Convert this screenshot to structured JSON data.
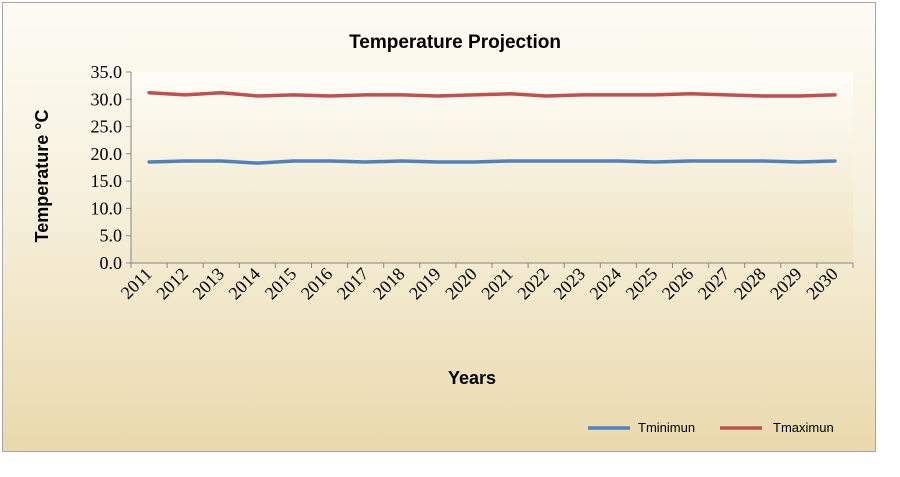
{
  "chart_data": {
    "type": "line",
    "title": "Temperature Projection",
    "xlabel": "Years",
    "ylabel": "Temperature °C",
    "ylim": [
      0,
      35
    ],
    "yticks": [
      "0.0",
      "5.0",
      "10.0",
      "15.0",
      "20.0",
      "25.0",
      "30.0",
      "35.0"
    ],
    "categories": [
      "2011",
      "2012",
      "2013",
      "2014",
      "2015",
      "2016",
      "2017",
      "2018",
      "2019",
      "2020",
      "2021",
      "2022",
      "2023",
      "2024",
      "2025",
      "2026",
      "2027",
      "2028",
      "2029",
      "2030"
    ],
    "legend_position": "bottom-right",
    "series": [
      {
        "name": "Tminimun",
        "color": "#4f81bd",
        "values": [
          18.5,
          18.7,
          18.7,
          18.3,
          18.7,
          18.7,
          18.5,
          18.7,
          18.5,
          18.5,
          18.7,
          18.7,
          18.7,
          18.7,
          18.5,
          18.7,
          18.7,
          18.7,
          18.5,
          18.7
        ]
      },
      {
        "name": "Tmaximun",
        "color": "#c0504d",
        "values": [
          31.2,
          30.8,
          31.2,
          30.6,
          30.8,
          30.6,
          30.8,
          30.8,
          30.6,
          30.8,
          31.0,
          30.6,
          30.8,
          30.8,
          30.8,
          31.0,
          30.8,
          30.6,
          30.6,
          30.8
        ]
      }
    ]
  }
}
